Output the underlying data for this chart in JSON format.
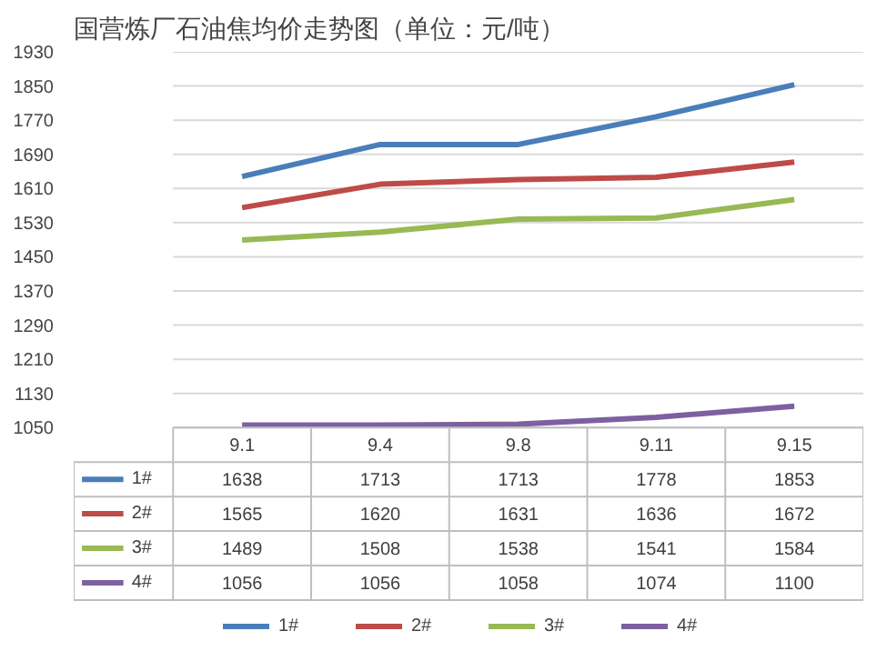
{
  "chart_data": {
    "type": "line",
    "title": "国营炼厂石油焦均价走势图（单位：元/吨）",
    "categories": [
      "9.1",
      "9.4",
      "9.8",
      "9.11",
      "9.15"
    ],
    "series": [
      {
        "name": "1#",
        "color": "#4a7ebb",
        "values": [
          1638,
          1713,
          1713,
          1778,
          1853
        ]
      },
      {
        "name": "2#",
        "color": "#be4b48",
        "values": [
          1565,
          1620,
          1631,
          1636,
          1672
        ]
      },
      {
        "name": "3#",
        "color": "#98b954",
        "values": [
          1489,
          1508,
          1538,
          1541,
          1584
        ]
      },
      {
        "name": "4#",
        "color": "#7d60a0",
        "values": [
          1056,
          1056,
          1058,
          1074,
          1100
        ]
      }
    ],
    "ylim": [
      1050,
      1930
    ],
    "yticks": [
      1050,
      1130,
      1210,
      1290,
      1370,
      1450,
      1530,
      1610,
      1690,
      1770,
      1850,
      1930
    ],
    "grid": "y",
    "legend": "bottom",
    "data_labels": true
  }
}
